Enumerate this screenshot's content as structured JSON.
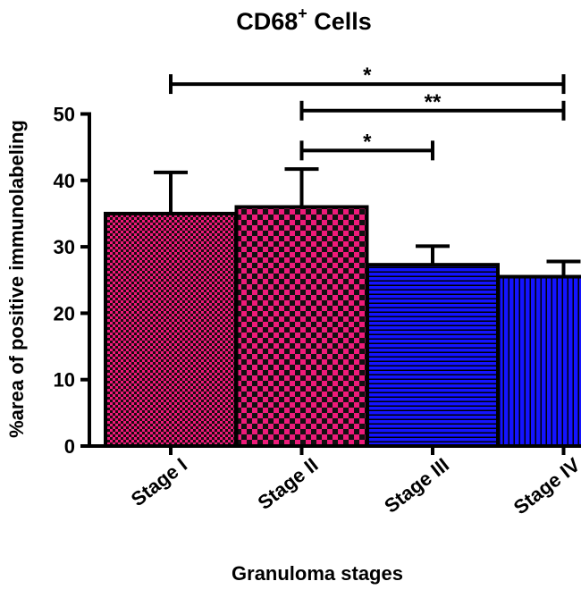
{
  "chart_data": {
    "type": "bar",
    "title": "CD68",
    "title_superscript": "+",
    "title_suffix": " Cells",
    "xlabel": "Granuloma stages",
    "ylabel": "%area of positive immunolabeling",
    "ylim": [
      0,
      50
    ],
    "yticks": [
      "0",
      "10",
      "20",
      "30",
      "40",
      "50"
    ],
    "categories": [
      "Stage  I",
      "Stage  II",
      "Stage  III",
      "Stage  IV"
    ],
    "values": [
      35,
      36,
      27.3,
      25.5
    ],
    "error": [
      6.2,
      5.7,
      2.8,
      2.3
    ],
    "bar_colors": [
      "#ee1b7a",
      "#ee1b7a",
      "#1010ff",
      "#1010ff"
    ],
    "bar_patterns": [
      "checker-small",
      "checker-large",
      "horizontal-lines",
      "vertical-lines"
    ],
    "significance": [
      {
        "from": 0,
        "to": 3,
        "y": 54.5,
        "label": "*"
      },
      {
        "from": 1,
        "to": 3,
        "y": 50.5,
        "label": "**"
      },
      {
        "from": 1,
        "to": 2,
        "y": 44.5,
        "label": "*"
      }
    ],
    "grid": false,
    "legend": "none"
  }
}
